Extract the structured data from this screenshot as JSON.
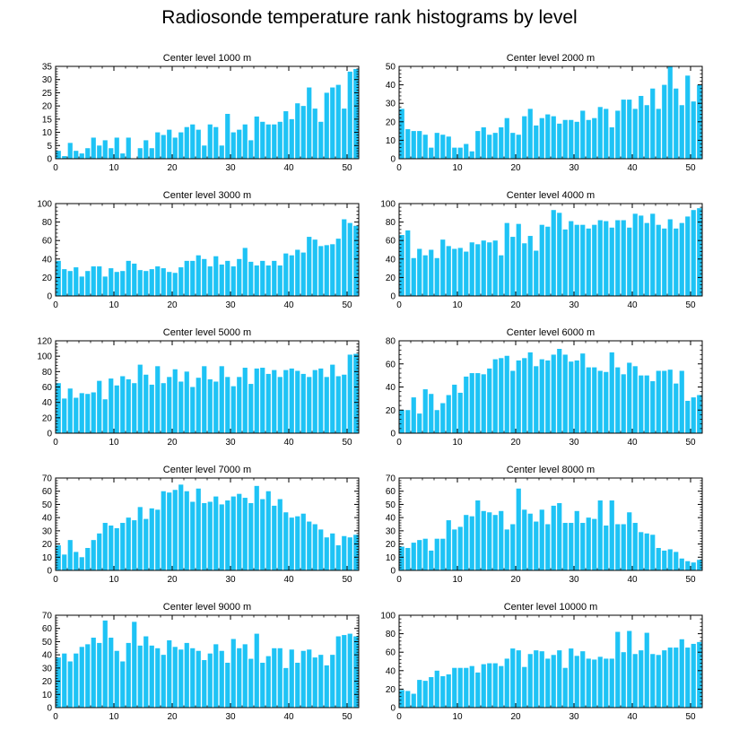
{
  "title": "Radiosonde temperature rank histograms by level",
  "colors": {
    "bar": "#1EC3F5",
    "axis": "#000000"
  },
  "chart_data": [
    {
      "type": "bar",
      "title": "Center level 1000 m",
      "xlabel": "",
      "ylabel": "",
      "xlim": [
        0,
        52
      ],
      "ylim": [
        0,
        35
      ],
      "xticks": [
        0,
        10,
        20,
        30,
        40,
        50
      ],
      "yticks": [
        0,
        5,
        10,
        15,
        20,
        25,
        30,
        35
      ],
      "values": [
        3,
        1,
        6,
        3,
        2,
        4,
        8,
        5,
        7,
        4,
        8,
        2,
        8,
        0,
        4,
        7,
        4,
        10,
        9,
        11,
        8,
        10,
        12,
        13,
        11,
        5,
        13,
        12,
        5,
        17,
        10,
        11,
        13,
        7,
        16,
        14,
        13,
        13,
        14,
        18,
        15,
        21,
        20,
        27,
        19,
        14,
        25,
        27,
        28,
        19,
        33,
        34
      ]
    },
    {
      "type": "bar",
      "title": "Center level 2000 m",
      "xlabel": "",
      "ylabel": "",
      "xlim": [
        0,
        52
      ],
      "ylim": [
        0,
        50
      ],
      "xticks": [
        0,
        10,
        20,
        30,
        40,
        50
      ],
      "yticks": [
        0,
        10,
        20,
        30,
        40,
        50
      ],
      "values": [
        27,
        16,
        15,
        15,
        13,
        6,
        14,
        13,
        12,
        6,
        6,
        8,
        4,
        15,
        17,
        13,
        14,
        17,
        22,
        14,
        13,
        23,
        27,
        18,
        22,
        24,
        23,
        19,
        21,
        21,
        20,
        26,
        21,
        22,
        28,
        27,
        17,
        26,
        32,
        32,
        27,
        34,
        29,
        38,
        27,
        40,
        50,
        38,
        29,
        45,
        31,
        40
      ]
    },
    {
      "type": "bar",
      "title": "Center level 3000 m",
      "xlabel": "",
      "ylabel": "",
      "xlim": [
        0,
        52
      ],
      "ylim": [
        0,
        100
      ],
      "xticks": [
        0,
        10,
        20,
        30,
        40,
        50
      ],
      "yticks": [
        0,
        20,
        40,
        60,
        80,
        100
      ],
      "values": [
        38,
        29,
        27,
        31,
        21,
        27,
        32,
        32,
        21,
        30,
        26,
        27,
        38,
        35,
        28,
        27,
        29,
        32,
        30,
        26,
        25,
        31,
        38,
        38,
        44,
        40,
        32,
        43,
        34,
        38,
        32,
        40,
        52,
        37,
        33,
        38,
        33,
        38,
        33,
        46,
        44,
        50,
        47,
        64,
        61,
        54,
        55,
        56,
        62,
        83,
        79,
        76
      ]
    },
    {
      "type": "bar",
      "title": "Center level 4000 m",
      "xlabel": "",
      "ylabel": "",
      "xlim": [
        0,
        52
      ],
      "ylim": [
        0,
        100
      ],
      "xticks": [
        0,
        10,
        20,
        30,
        40,
        50
      ],
      "yticks": [
        0,
        20,
        40,
        60,
        80,
        100
      ],
      "values": [
        66,
        71,
        41,
        51,
        44,
        50,
        41,
        61,
        54,
        51,
        52,
        48,
        58,
        56,
        60,
        58,
        60,
        44,
        79,
        64,
        78,
        57,
        65,
        49,
        77,
        75,
        93,
        90,
        72,
        81,
        77,
        77,
        73,
        77,
        82,
        81,
        74,
        82,
        82,
        74,
        89,
        87,
        79,
        89,
        77,
        73,
        83,
        73,
        79,
        86,
        93,
        95
      ]
    },
    {
      "type": "bar",
      "title": "Center level 5000 m",
      "xlabel": "",
      "ylabel": "",
      "xlim": [
        0,
        52
      ],
      "ylim": [
        0,
        120
      ],
      "xticks": [
        0,
        10,
        20,
        30,
        40,
        50
      ],
      "yticks": [
        0,
        20,
        40,
        60,
        80,
        100,
        120
      ],
      "values": [
        65,
        45,
        58,
        46,
        52,
        51,
        53,
        68,
        44,
        71,
        62,
        74,
        70,
        65,
        89,
        76,
        63,
        87,
        65,
        73,
        83,
        67,
        80,
        60,
        72,
        87,
        70,
        67,
        87,
        73,
        61,
        73,
        85,
        64,
        84,
        85,
        77,
        82,
        73,
        82,
        84,
        81,
        77,
        73,
        82,
        84,
        73,
        89,
        74,
        76,
        102,
        103
      ]
    },
    {
      "type": "bar",
      "title": "Center level 6000 m",
      "xlabel": "",
      "ylabel": "",
      "xlim": [
        0,
        52
      ],
      "ylim": [
        0,
        80
      ],
      "xticks": [
        0,
        10,
        20,
        30,
        40,
        50
      ],
      "yticks": [
        0,
        20,
        40,
        60,
        80
      ],
      "values": [
        20,
        20,
        31,
        17,
        38,
        34,
        20,
        26,
        33,
        42,
        35,
        49,
        52,
        52,
        51,
        56,
        64,
        65,
        67,
        54,
        63,
        65,
        70,
        58,
        64,
        63,
        68,
        73,
        68,
        62,
        63,
        69,
        57,
        57,
        54,
        53,
        70,
        57,
        51,
        61,
        58,
        50,
        50,
        45,
        54,
        54,
        55,
        43,
        54,
        28,
        31,
        33
      ]
    },
    {
      "type": "bar",
      "title": "Center level 7000 m",
      "xlabel": "",
      "ylabel": "",
      "xlim": [
        0,
        52
      ],
      "ylim": [
        0,
        70
      ],
      "xticks": [
        0,
        10,
        20,
        30,
        40,
        50
      ],
      "yticks": [
        0,
        10,
        20,
        30,
        40,
        50,
        60,
        70
      ],
      "values": [
        19,
        12,
        23,
        14,
        10,
        17,
        23,
        28,
        36,
        34,
        32,
        36,
        40,
        38,
        48,
        39,
        47,
        46,
        60,
        59,
        61,
        65,
        60,
        52,
        62,
        51,
        52,
        56,
        50,
        53,
        56,
        58,
        55,
        51,
        64,
        54,
        60,
        49,
        54,
        44,
        40,
        41,
        43,
        37,
        35,
        31,
        25,
        28,
        19,
        26,
        25,
        27
      ]
    },
    {
      "type": "bar",
      "title": "Center level 8000 m",
      "xlabel": "",
      "ylabel": "",
      "xlim": [
        0,
        52
      ],
      "ylim": [
        0,
        70
      ],
      "xticks": [
        0,
        10,
        20,
        30,
        40,
        50
      ],
      "yticks": [
        0,
        10,
        20,
        30,
        40,
        50,
        60,
        70
      ],
      "values": [
        18,
        17,
        21,
        23,
        24,
        15,
        24,
        24,
        38,
        31,
        33,
        42,
        41,
        53,
        45,
        44,
        42,
        45,
        31,
        35,
        62,
        46,
        43,
        37,
        46,
        35,
        49,
        51,
        36,
        36,
        45,
        36,
        40,
        39,
        53,
        34,
        53,
        35,
        35,
        44,
        36,
        29,
        28,
        27,
        17,
        15,
        16,
        14,
        9,
        7,
        6,
        8
      ]
    },
    {
      "type": "bar",
      "title": "Center level 9000 m",
      "xlabel": "",
      "ylabel": "",
      "xlim": [
        0,
        52
      ],
      "ylim": [
        0,
        70
      ],
      "xticks": [
        0,
        10,
        20,
        30,
        40,
        50
      ],
      "yticks": [
        0,
        10,
        20,
        30,
        40,
        50,
        60,
        70
      ],
      "values": [
        38,
        41,
        35,
        41,
        46,
        48,
        53,
        49,
        66,
        53,
        43,
        35,
        49,
        65,
        47,
        54,
        47,
        45,
        40,
        51,
        46,
        44,
        49,
        45,
        43,
        36,
        41,
        48,
        43,
        34,
        52,
        45,
        48,
        37,
        56,
        34,
        39,
        45,
        45,
        30,
        44,
        34,
        43,
        44,
        38,
        40,
        32,
        40,
        54,
        55,
        56,
        54
      ]
    },
    {
      "type": "bar",
      "title": "Center level 10000 m",
      "xlabel": "",
      "ylabel": "",
      "xlim": [
        0,
        52
      ],
      "ylim": [
        0,
        100
      ],
      "xticks": [
        0,
        10,
        20,
        30,
        40,
        50
      ],
      "yticks": [
        0,
        20,
        40,
        60,
        80,
        100
      ],
      "values": [
        19,
        18,
        15,
        30,
        29,
        33,
        40,
        34,
        36,
        43,
        43,
        43,
        45,
        38,
        47,
        48,
        48,
        45,
        53,
        64,
        62,
        44,
        58,
        62,
        61,
        53,
        57,
        62,
        43,
        64,
        56,
        61,
        53,
        52,
        55,
        53,
        53,
        82,
        60,
        83,
        58,
        62,
        81,
        58,
        57,
        62,
        65,
        65,
        74,
        65,
        69,
        71
      ]
    }
  ]
}
